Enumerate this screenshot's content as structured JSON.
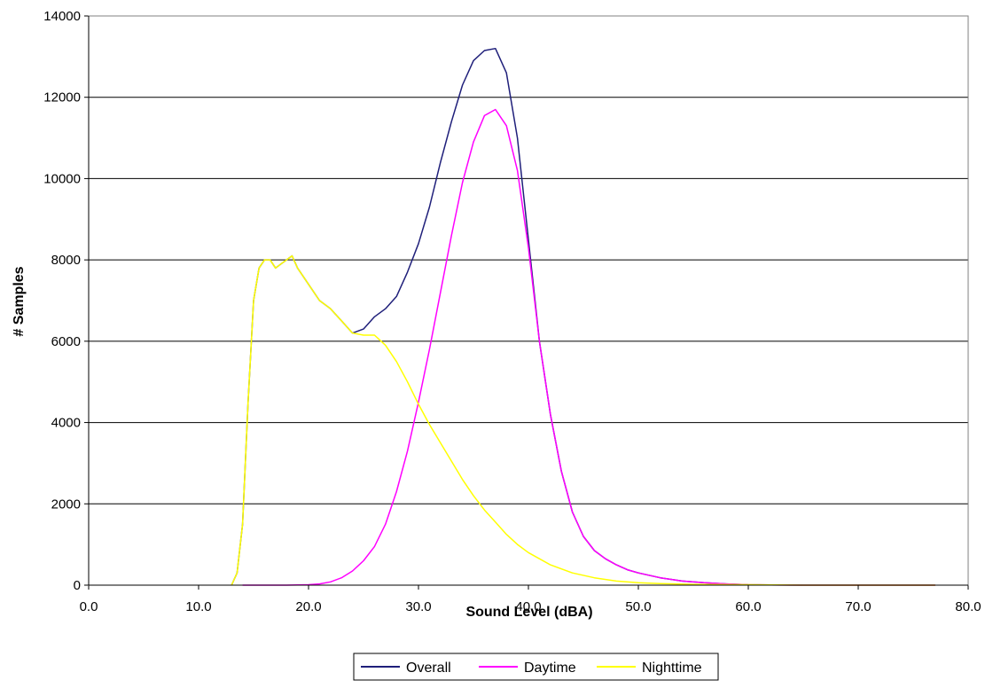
{
  "chart_data": {
    "type": "line",
    "title": "",
    "xlabel": "Sound Level (dBA)",
    "ylabel": "# Samples",
    "xlim": [
      0,
      80
    ],
    "ylim": [
      0,
      14000
    ],
    "x_ticks": [
      "0.0",
      "10.0",
      "20.0",
      "30.0",
      "40.0",
      "50.0",
      "60.0",
      "70.0",
      "80.0"
    ],
    "y_ticks": [
      "0",
      "2000",
      "4000",
      "6000",
      "8000",
      "10000",
      "12000",
      "14000"
    ],
    "grid": "horizontal",
    "legend_position": "bottom",
    "series": [
      {
        "name": "Overall",
        "color": "#1f1f7a",
        "x": [
          13,
          13.5,
          14,
          14.5,
          15,
          15.5,
          16,
          16.5,
          17,
          17.5,
          18,
          18.5,
          19,
          20,
          21,
          22,
          23,
          24,
          25,
          26,
          27,
          28,
          29,
          30,
          31,
          32,
          33,
          34,
          35,
          36,
          37,
          38,
          39,
          40,
          41,
          42,
          43,
          44,
          45,
          46,
          47,
          48,
          49,
          50,
          52,
          54,
          56,
          58,
          60,
          62,
          65,
          70,
          77
        ],
        "y": [
          0,
          300,
          1500,
          4500,
          7000,
          7800,
          8000,
          8000,
          7800,
          7900,
          8000,
          8100,
          7800,
          7400,
          7000,
          6800,
          6500,
          6200,
          6300,
          6600,
          6800,
          7100,
          7700,
          8400,
          9300,
          10400,
          11400,
          12300,
          12900,
          13150,
          13200,
          12600,
          11000,
          8500,
          6000,
          4200,
          2800,
          1800,
          1200,
          850,
          650,
          500,
          380,
          300,
          180,
          100,
          60,
          30,
          10,
          5,
          0,
          0,
          0
        ]
      },
      {
        "name": "Daytime",
        "color": "#ff00ff",
        "x": [
          14,
          16,
          18,
          20,
          21,
          22,
          23,
          24,
          25,
          26,
          27,
          28,
          29,
          30,
          31,
          32,
          33,
          34,
          35,
          36,
          37,
          38,
          39,
          40,
          41,
          42,
          43,
          44,
          45,
          46,
          47,
          48,
          49,
          50,
          52,
          54,
          56,
          58,
          60,
          62,
          65,
          70,
          77
        ],
        "y": [
          0,
          0,
          0,
          10,
          30,
          80,
          180,
          350,
          600,
          950,
          1500,
          2300,
          3300,
          4500,
          5800,
          7200,
          8600,
          9900,
          10900,
          11550,
          11700,
          11300,
          10200,
          8300,
          6000,
          4200,
          2800,
          1800,
          1200,
          850,
          650,
          500,
          380,
          300,
          180,
          100,
          60,
          30,
          10,
          5,
          0,
          0,
          0
        ]
      },
      {
        "name": "Nighttime",
        "color": "#ffff00",
        "x": [
          13,
          13.5,
          14,
          14.5,
          15,
          15.5,
          16,
          16.5,
          17,
          17.5,
          18,
          18.5,
          19,
          20,
          21,
          22,
          23,
          24,
          25,
          26,
          27,
          28,
          29,
          30,
          31,
          32,
          33,
          34,
          35,
          36,
          37,
          38,
          39,
          40,
          42,
          44,
          46,
          48,
          50,
          52,
          55,
          60,
          65,
          70,
          77
        ],
        "y": [
          0,
          300,
          1500,
          4500,
          7000,
          7800,
          8000,
          8000,
          7800,
          7900,
          8000,
          8100,
          7800,
          7400,
          7000,
          6800,
          6500,
          6200,
          6150,
          6150,
          5900,
          5500,
          5000,
          4450,
          3950,
          3500,
          3050,
          2600,
          2200,
          1850,
          1550,
          1250,
          1000,
          800,
          500,
          300,
          180,
          100,
          60,
          40,
          20,
          10,
          0,
          0,
          0
        ]
      }
    ]
  }
}
